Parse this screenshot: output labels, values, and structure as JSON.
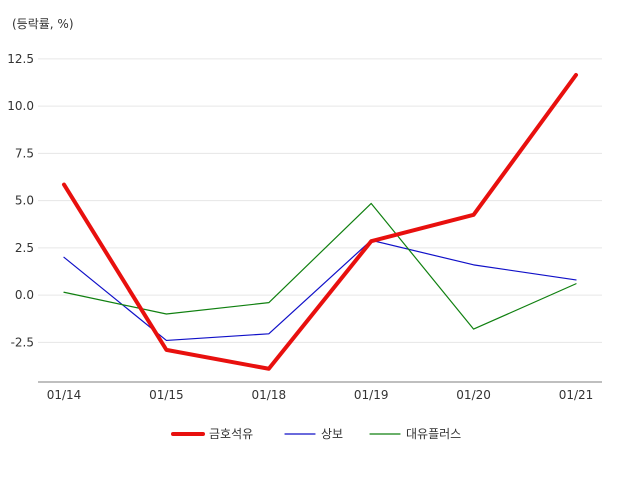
{
  "chart_data": {
    "type": "line",
    "ylabel": "(등락률, %)",
    "categories": [
      "01/14",
      "01/15",
      "01/18",
      "01/19",
      "01/20",
      "01/21"
    ],
    "yticks": [
      -2.5,
      0.0,
      2.5,
      5.0,
      7.5,
      10.0,
      12.5
    ],
    "ytick_labels": [
      "-2.5",
      "0.0",
      "2.5",
      "5.0",
      "7.5",
      "10.0",
      "12.5"
    ],
    "ylim": [
      -4.6,
      13.5
    ],
    "grid": true,
    "legend": "bottom",
    "series": [
      {
        "name": "금호석유",
        "color": "#e8100e",
        "width": "bold",
        "values": [
          5.85,
          -2.9,
          -3.9,
          2.85,
          4.25,
          11.65
        ]
      },
      {
        "name": "상보",
        "color": "#1010c8",
        "width": "thin",
        "values": [
          2.0,
          -2.4,
          -2.05,
          2.9,
          1.6,
          0.8
        ]
      },
      {
        "name": "대유플러스",
        "color": "#108010",
        "width": "thin",
        "values": [
          0.15,
          -1.0,
          -0.4,
          4.85,
          -1.8,
          0.6
        ]
      }
    ]
  }
}
